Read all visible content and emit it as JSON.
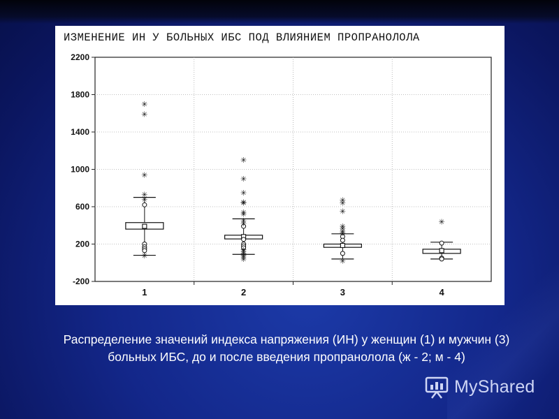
{
  "chart_data": {
    "type": "box",
    "title": "ИЗМЕНЕНИЕ ИН У БОЛЬНЫХ ИБС ПОД ВЛИЯНИЕМ ПРОПРАНОЛОЛА",
    "xlabel": "",
    "ylabel": "",
    "ylim": [
      -200,
      2200
    ],
    "yticks": [
      "2200",
      "1800",
      "1400",
      "1000",
      "600",
      "200",
      "-200"
    ],
    "categories": [
      "1",
      "2",
      "3",
      "4"
    ],
    "grid": true,
    "boxes": [
      {
        "category": "1",
        "whisker_low": 80,
        "q1": 360,
        "median": 390,
        "q3": 430,
        "whisker_high": 700,
        "outliers": [
          620,
          200,
          170,
          150,
          130
        ],
        "extremes": [
          1700,
          1590,
          940,
          730,
          680,
          75
        ]
      },
      {
        "category": "2",
        "whisker_low": 90,
        "q1": 255,
        "median": 280,
        "q3": 295,
        "whisker_high": 470,
        "outliers": [
          390,
          250,
          200,
          180,
          160
        ],
        "extremes": [
          1100,
          900,
          750,
          650,
          640,
          540,
          520,
          450,
          420,
          140,
          120,
          100,
          80,
          60,
          40
        ]
      },
      {
        "category": "3",
        "whisker_low": 40,
        "q1": 165,
        "median": 185,
        "q3": 200,
        "whisker_high": 310,
        "outliers": [
          280,
          240,
          100
        ],
        "extremes": [
          670,
          640,
          550,
          390,
          370,
          340,
          320,
          20
        ]
      },
      {
        "category": "4",
        "whisker_low": 40,
        "q1": 100,
        "median": 130,
        "q3": 145,
        "whisker_high": 220,
        "outliers": [
          210,
          50,
          40
        ],
        "extremes": [
          440
        ]
      }
    ]
  },
  "caption": {
    "line1": "Распределение значений индекса напряжения (ИН) у женщин (1) и мужчин (3)",
    "line2": "больных ИБС, до и после введения пропранолола (ж - 2; м - 4)"
  },
  "logo": {
    "text": "MyShared",
    "icon": "presentation-board-icon"
  },
  "colors": {
    "background": "#13278a",
    "panel": "#ffffff",
    "ink": "#111111",
    "caption": "#ffffff"
  }
}
